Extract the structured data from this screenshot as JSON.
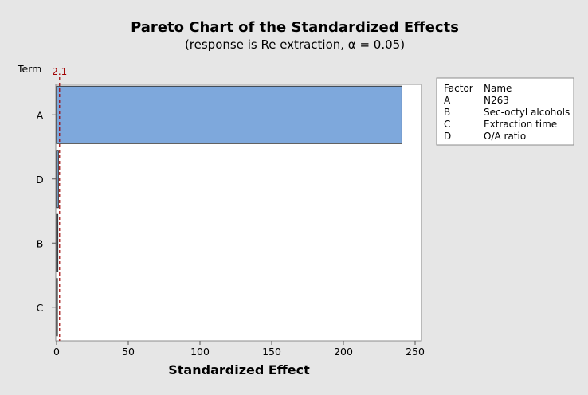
{
  "chart_data": {
    "type": "bar",
    "orientation": "horizontal",
    "title": "Pareto Chart of the Standardized Effects",
    "subtitle": "(response is Re extraction, α = 0.05)",
    "xlabel": "Standardized Effect",
    "ylabel": "Term",
    "categories": [
      "A",
      "D",
      "B",
      "C"
    ],
    "values": [
      240.8,
      1.3,
      0.9,
      0.6
    ],
    "xlim": [
      0,
      255
    ],
    "xticks": [
      0,
      50,
      100,
      150,
      200,
      250
    ],
    "reference_line": {
      "value": 2.1,
      "label": "2.1",
      "color": "#a00000"
    },
    "bar_color": "#7ea8dc",
    "grid": false,
    "legend": {
      "placement": "top-right",
      "headers": [
        "Factor",
        "Name"
      ],
      "entries": [
        {
          "factor": "A",
          "name": "N263"
        },
        {
          "factor": "B",
          "name": "Sec-octyl alcohols"
        },
        {
          "factor": "C",
          "name": "Extraction time"
        },
        {
          "factor": "D",
          "name": "O/A ratio"
        }
      ]
    }
  }
}
